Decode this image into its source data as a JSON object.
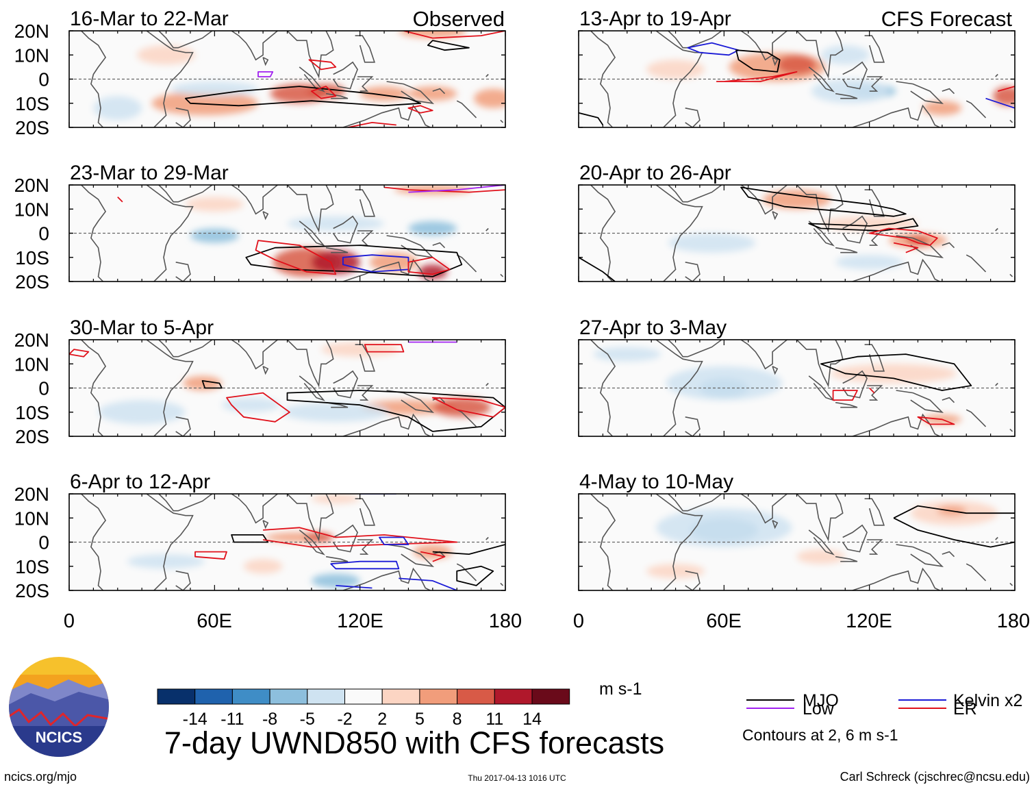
{
  "chart_data": {
    "type": "heatmap",
    "title": "7-day UWND850 with CFS forecasts",
    "variable": "850-hPa zonal wind anomaly",
    "x_ticks": [
      "0",
      "60E",
      "120E",
      "180"
    ],
    "x_range": [
      0,
      180
    ],
    "y_ticks": [
      "20N",
      "10N",
      "0",
      "10S",
      "20S"
    ],
    "y_range": [
      -20,
      20
    ],
    "columns": [
      {
        "label": "Observed",
        "panels": [
          {
            "period": "16-Mar to 22-Mar"
          },
          {
            "period": "23-Mar to 29-Mar"
          },
          {
            "period": "30-Mar to 5-Apr"
          },
          {
            "period": "6-Apr to 12-Apr"
          }
        ]
      },
      {
        "label": "CFS Forecast",
        "panels": [
          {
            "period": "13-Apr to 19-Apr"
          },
          {
            "period": "20-Apr to 26-Apr"
          },
          {
            "period": "27-Apr to 3-May"
          },
          {
            "period": "4-May to 10-May"
          }
        ]
      }
    ],
    "colorbar": {
      "labels": [
        "-14",
        "-11",
        "-8",
        "-5",
        "-2",
        "2",
        "5",
        "8",
        "11",
        "14"
      ],
      "colors": [
        "#08306b",
        "#1f62ad",
        "#3f8dc6",
        "#8dbfdd",
        "#cfe3f1",
        "#fafafa",
        "#fcd5c3",
        "#f19d7b",
        "#d85a47",
        "#b0182b",
        "#6a0a1a"
      ],
      "units": "m s-1"
    },
    "legend": [
      {
        "name": "MJO",
        "color": "#000000"
      },
      {
        "name": "Kelvin x2",
        "color": "#1a1ad6"
      },
      {
        "name": "Low",
        "color": "#a020f0"
      },
      {
        "name": "ER",
        "color": "#e0101a"
      }
    ],
    "contour_note": "Contours at 2, 6 m s-1"
  },
  "footer": {
    "logo_text": "NCICS",
    "website": "ncics.org/mjo",
    "timestamp": "Thu 2017-04-13 1016 UTC",
    "author": "Carl Schreck (cjschrec@ncsu.edu)"
  }
}
